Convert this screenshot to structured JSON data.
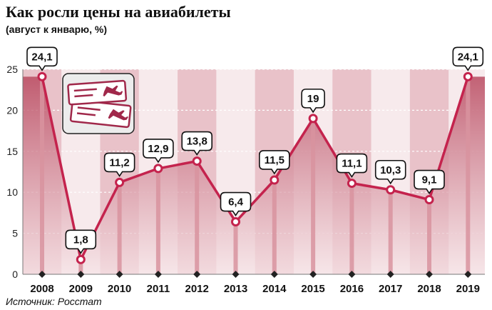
{
  "header": {
    "title": "Как росли цены на авиабилеты",
    "subtitle": "(август к январю, %)"
  },
  "footer": {
    "source": "Источник: Росстат"
  },
  "colors": {
    "line": "#c4234d",
    "band": "#e9c2c9",
    "stem": "#d8939f",
    "area_top": "#b94a60",
    "area_bottom": "#f6e4e7",
    "bg_light": "#f7eaec"
  },
  "icon": {
    "name": "plane-tickets-icon"
  },
  "chart_data": {
    "type": "area",
    "title": "Как росли цены на авиабилеты",
    "subtitle": "(август к январю, %)",
    "categories": [
      "2008",
      "2009",
      "2010",
      "2011",
      "2012",
      "2013",
      "2014",
      "2015",
      "2016",
      "2017",
      "2018",
      "2019"
    ],
    "series": [
      {
        "values": [
          24.1,
          1.8,
          11.2,
          12.9,
          13.8,
          6.4,
          11.5,
          19,
          11.1,
          10.3,
          9.1,
          24.1
        ]
      }
    ],
    "data_labels": [
      "24,1",
      "1,8",
      "11,2",
      "12,9",
      "13,8",
      "6,4",
      "11,5",
      "19",
      "11,1",
      "10,3",
      "9,1",
      "24,1"
    ],
    "ylim": [
      0,
      25
    ],
    "yticks": [
      "0",
      "5",
      "10",
      "15",
      "20",
      "25"
    ],
    "grid": true,
    "xlabel": "",
    "ylabel": ""
  }
}
